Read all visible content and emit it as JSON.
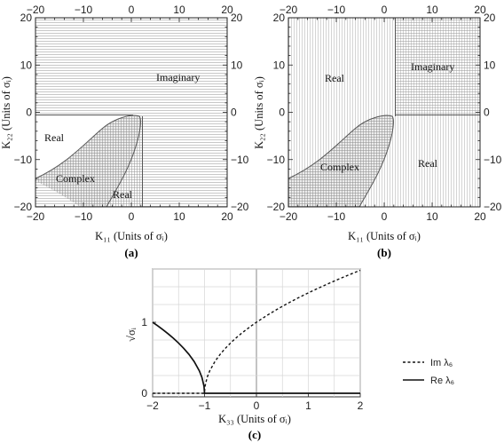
{
  "chart_data": [
    {
      "type": "heatmap",
      "panel_label": "(a)",
      "xlabel": "K₁₁ (Units of σᵢ)",
      "ylabel": "K₂₂ (Units of σᵢ)",
      "xlim": [
        -20,
        20
      ],
      "ylim": [
        -20,
        20
      ],
      "xticks": [
        -20,
        -10,
        0,
        10,
        20
      ],
      "yticks": [
        -20,
        -10,
        0,
        10,
        20
      ],
      "x_tick_labels": [
        "−20",
        "−10",
        "0",
        "10",
        "20"
      ],
      "y_tick_labels": [
        "−20",
        "−10",
        "0",
        "10",
        "20"
      ],
      "regions": [
        {
          "name": "Imaginary",
          "x": 10,
          "y": 8
        },
        {
          "name": "Real",
          "x": -15,
          "y": -5
        },
        {
          "name": "Complex",
          "x": -12,
          "y": -14
        },
        {
          "name": "Real",
          "x": -2,
          "y": -17
        }
      ],
      "boundaries": {
        "cusp_x": 2,
        "cusp_y": -0.5,
        "lower_ellipse_x": -9,
        "lower_ellipse_right_x": -3
      }
    },
    {
      "type": "heatmap",
      "panel_label": "(b)",
      "xlabel": "K₁₁ (Units of σᵢ)",
      "ylabel": "K₂₂ (Units of σᵢ)",
      "xlim": [
        -20,
        20
      ],
      "ylim": [
        -20,
        20
      ],
      "xticks": [
        -20,
        -10,
        0,
        10,
        20
      ],
      "yticks": [
        -20,
        -10,
        0,
        10,
        20
      ],
      "x_tick_labels": [
        "−20",
        "−10",
        "0",
        "10",
        "20"
      ],
      "y_tick_labels": [
        "−20",
        "−10",
        "0",
        "10",
        "20"
      ],
      "regions": [
        {
          "name": "Imaginary",
          "x": 10,
          "y": 10
        },
        {
          "name": "Real",
          "x": -9,
          "y": 8
        },
        {
          "name": "Complex",
          "x": -12,
          "y": -13
        },
        {
          "name": "Real",
          "x": 12,
          "y": -12
        }
      ],
      "boundaries": {
        "cusp_x": 2,
        "cusp_y": -0.5,
        "lower_ellipse_x": -9,
        "lower_ellipse_right_x": -3
      }
    },
    {
      "type": "line",
      "panel_label": "(c)",
      "xlabel": "K₃₃ (Units of σᵢ)",
      "ylabel": "√σᵢ",
      "xlim": [
        -2,
        2
      ],
      "ylim": [
        -0.05,
        1.75
      ],
      "xticks": [
        -2,
        -1,
        0,
        1,
        2
      ],
      "yticks": [
        0,
        1
      ],
      "x_tick_labels": [
        "−2",
        "−1",
        "0",
        "1",
        "2"
      ],
      "y_tick_labels": [
        "0",
        "1"
      ],
      "grid": true,
      "legend_placement": "right",
      "series": [
        {
          "name": "Im λ₆",
          "style": "dashed",
          "x": [
            -2,
            -1.8,
            -1.6,
            -1.4,
            -1.2,
            -1.0,
            -0.999,
            -0.99,
            -0.95,
            -0.9,
            -0.8,
            -0.7,
            -0.6,
            -0.5,
            -0.4,
            -0.3,
            -0.2,
            -0.1,
            0,
            0.2,
            0.4,
            0.6,
            0.8,
            1.0,
            1.2,
            1.4,
            1.6,
            1.8,
            2.0
          ],
          "y": [
            0,
            0,
            0,
            0,
            0,
            0,
            0.032,
            0.1,
            0.224,
            0.316,
            0.447,
            0.548,
            0.632,
            0.707,
            0.775,
            0.837,
            0.894,
            0.949,
            1.0,
            1.095,
            1.183,
            1.265,
            1.342,
            1.414,
            1.483,
            1.549,
            1.612,
            1.673,
            1.732
          ]
        },
        {
          "name": "Re λ₆",
          "style": "solid",
          "x": [
            -2,
            -1.9,
            -1.8,
            -1.7,
            -1.6,
            -1.5,
            -1.4,
            -1.3,
            -1.2,
            -1.1,
            -1.05,
            -1.01,
            -1.0,
            -0.5,
            0,
            0.5,
            1.0,
            1.5,
            2.0
          ],
          "y": [
            1.0,
            0.949,
            0.894,
            0.837,
            0.775,
            0.707,
            0.632,
            0.548,
            0.447,
            0.316,
            0.224,
            0.1,
            0,
            0,
            0,
            0,
            0,
            0,
            0
          ]
        }
      ]
    }
  ]
}
